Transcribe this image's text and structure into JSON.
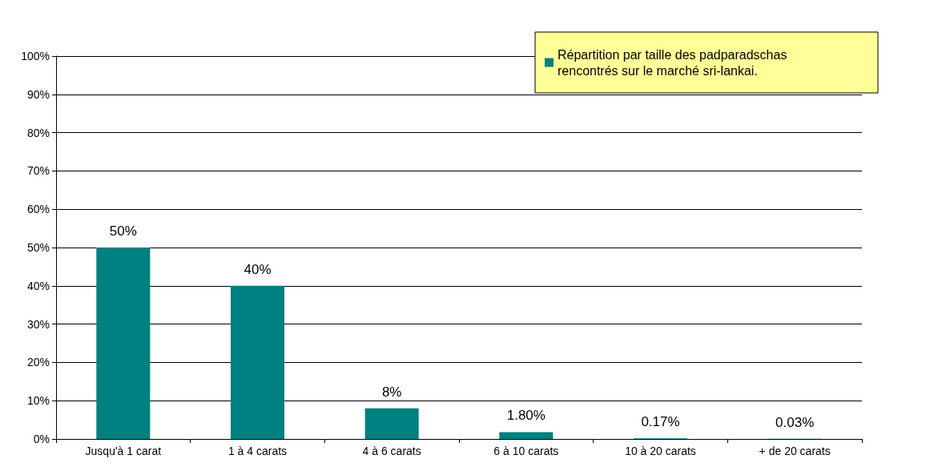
{
  "chart_data": {
    "type": "bar",
    "categories": [
      "Jusqu'à 1 carat",
      "1 à 4 carats",
      "4 à 6 carats",
      "6 à 10 carats",
      "10 à 20 carats",
      "+ de 20 carats"
    ],
    "series": [
      {
        "name": "Répartition par taille des padparadschas rencontrés sur le marché sri-lankai.",
        "color": "#008080",
        "values": [
          50,
          40,
          8,
          1.8,
          0.17,
          0.03
        ],
        "value_labels": [
          "50%",
          "40%",
          "8%",
          "1.80%",
          "0.17%",
          "0.03%"
        ]
      }
    ],
    "ylim": [
      0,
      100
    ],
    "yticks": [
      {
        "value": 0,
        "label": "0%"
      },
      {
        "value": 10,
        "label": "10%"
      },
      {
        "value": 20,
        "label": "20%"
      },
      {
        "value": 30,
        "label": "30%"
      },
      {
        "value": 40,
        "label": "40%"
      },
      {
        "value": 50,
        "label": "50%"
      },
      {
        "value": 60,
        "label": "60%"
      },
      {
        "value": 70,
        "label": "70%"
      },
      {
        "value": 80,
        "label": "80%"
      },
      {
        "value": 90,
        "label": "90%"
      },
      {
        "value": 100,
        "label": "100%"
      }
    ],
    "grid": "y",
    "legend": "top right"
  }
}
